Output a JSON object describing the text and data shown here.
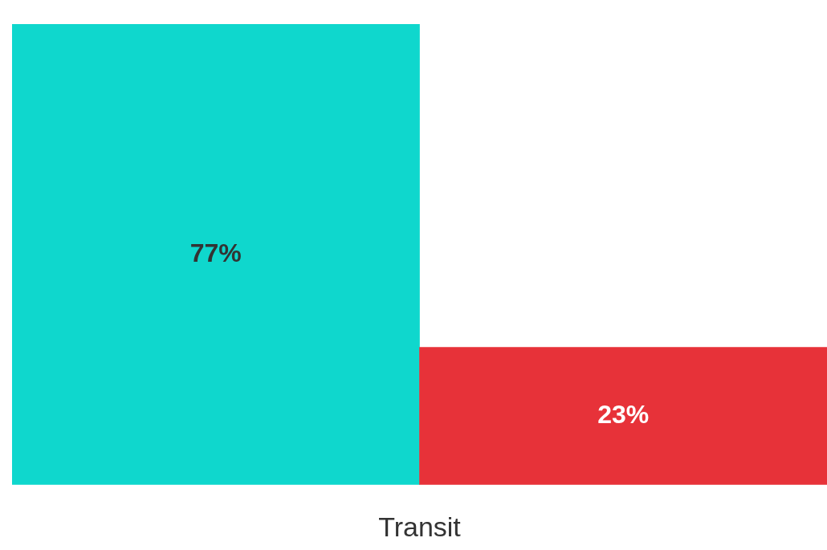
{
  "chart_data": {
    "type": "bar",
    "xlabel": "Transit",
    "categories": [
      null,
      null
    ],
    "values": [
      77,
      23
    ],
    "value_labels": [
      "77%",
      "23%"
    ],
    "colors": [
      "#0fd7cd",
      "#e73239"
    ],
    "grid": false,
    "legend": false
  }
}
